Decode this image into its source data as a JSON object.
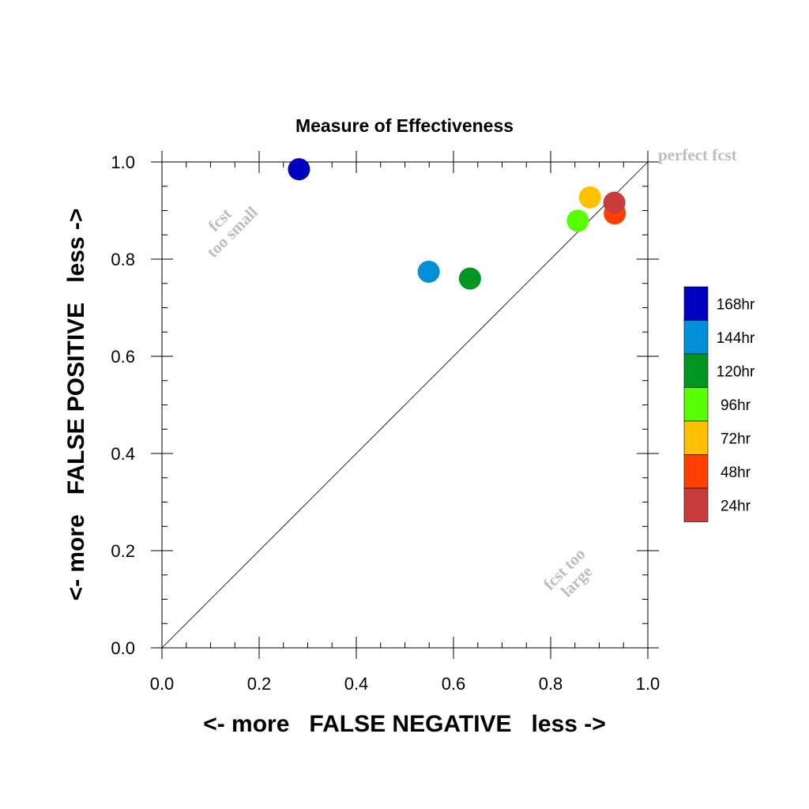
{
  "chart_data": {
    "type": "scatter",
    "title": "Measure of Effectiveness",
    "xlabel": "<- more   FALSE NEGATIVE   less ->",
    "ylabel": "<- more   FALSE POSITIVE   less ->",
    "xlim": [
      0.0,
      1.0
    ],
    "ylim": [
      0.0,
      1.0
    ],
    "xticks": [
      "0.0",
      "0.2",
      "0.4",
      "0.6",
      "0.8",
      "1.0"
    ],
    "yticks": [
      "0.0",
      "0.2",
      "0.4",
      "0.6",
      "0.8",
      "1.0"
    ],
    "grid": false,
    "legend_position": "right",
    "annotations": {
      "perfect": "perfect fcst",
      "small": [
        "fcst",
        "too small"
      ],
      "large": [
        "fcst too",
        "large"
      ]
    },
    "series": [
      {
        "name": "168hr",
        "color": "#0000c0",
        "x": 0.282,
        "y": 0.985
      },
      {
        "name": "144hr",
        "color": "#0090d8",
        "x": 0.549,
        "y": 0.774
      },
      {
        "name": "120hr",
        "color": "#009620",
        "x": 0.634,
        "y": 0.76
      },
      {
        "name": "96hr",
        "color": "#58ff00",
        "x": 0.856,
        "y": 0.879
      },
      {
        "name": "72hr",
        "color": "#ffc000",
        "x": 0.881,
        "y": 0.927
      },
      {
        "name": "48hr",
        "color": "#ff4000",
        "x": 0.932,
        "y": 0.894
      },
      {
        "name": "24hr",
        "color": "#c83c3c",
        "x": 0.931,
        "y": 0.916
      }
    ]
  }
}
